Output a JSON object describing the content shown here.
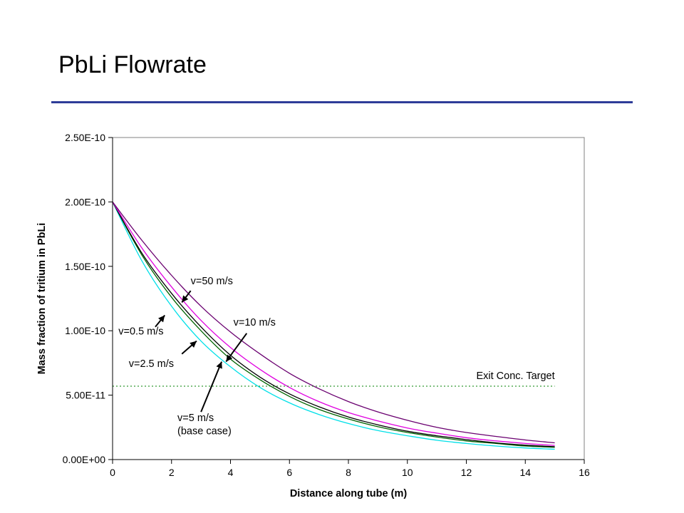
{
  "slide": {
    "title": "PbLi Flowrate"
  },
  "chart_data": {
    "type": "line",
    "xlabel": "Distance along tube (m)",
    "ylabel": "Mass fraction of tritium in PbLi",
    "xlim": [
      0,
      16
    ],
    "ylim": [
      0,
      2.5e-10
    ],
    "xticks": [
      0,
      2,
      4,
      6,
      8,
      10,
      12,
      14,
      16
    ],
    "xtick_labels": [
      "0",
      "2",
      "4",
      "6",
      "8",
      "10",
      "12",
      "14",
      "16"
    ],
    "yticks": [
      0,
      5e-11,
      1e-10,
      1.5e-10,
      2e-10,
      2.5e-10
    ],
    "ytick_labels": [
      "0.00E+00",
      "5.00E-11",
      "1.00E-10",
      "1.50E-10",
      "2.00E-10",
      "2.50E-10"
    ],
    "grid": false,
    "series": [
      {
        "color": "#00e0e8",
        "x": [
          0,
          1,
          2,
          3,
          4,
          5,
          6,
          7,
          8,
          9,
          10,
          11,
          12,
          13,
          14,
          15
        ],
        "y": [
          2e-10,
          1.54e-10,
          1.19e-10,
          9.2e-11,
          7.2e-11,
          5.6e-11,
          4.4e-11,
          3.5e-11,
          2.8e-11,
          2.25e-11,
          1.85e-11,
          1.5e-11,
          1.25e-11,
          1.05e-11,
          9e-12,
          8e-12
        ]
      },
      {
        "color": "#006400",
        "x": [
          0,
          1,
          2,
          3,
          4,
          5,
          6,
          7,
          8,
          9,
          10,
          11,
          12,
          13,
          14,
          15
        ],
        "y": [
          2e-10,
          1.585e-10,
          1.26e-10,
          1e-10,
          7.8e-11,
          6.2e-11,
          4.9e-11,
          3.9e-11,
          3.15e-11,
          2.55e-11,
          2.1e-11,
          1.75e-11,
          1.45e-11,
          1.25e-11,
          1.05e-11,
          9.5e-12
        ]
      },
      {
        "color": "#000000",
        "x": [
          0,
          1,
          2,
          3,
          4,
          5,
          6,
          7,
          8,
          9,
          10,
          11,
          12,
          13,
          14,
          15
        ],
        "y": [
          2e-10,
          1.6e-10,
          1.29e-10,
          1.03e-10,
          8.1e-11,
          6.4e-11,
          5.1e-11,
          4.1e-11,
          3.3e-11,
          2.7e-11,
          2.2e-11,
          1.85e-11,
          1.55e-11,
          1.3e-11,
          1.12e-11,
          1e-11
        ]
      },
      {
        "color": "#e000e0",
        "x": [
          0,
          1,
          2,
          3,
          4,
          5,
          6,
          7,
          8,
          9,
          10,
          11,
          12,
          13,
          14,
          15
        ],
        "y": [
          2e-10,
          1.64e-10,
          1.34e-10,
          1.08e-10,
          8.7e-11,
          7e-11,
          5.6e-11,
          4.5e-11,
          3.65e-11,
          3e-11,
          2.45e-11,
          2.05e-11,
          1.7e-11,
          1.45e-11,
          1.25e-11,
          1.1e-11
        ]
      },
      {
        "color": "#6a0070",
        "x": [
          0,
          1,
          2,
          3,
          4,
          5,
          6,
          7,
          8,
          9,
          10,
          11,
          12,
          13,
          14,
          15
        ],
        "y": [
          2e-10,
          1.7e-10,
          1.43e-10,
          1.19e-10,
          9.9e-11,
          8.2e-11,
          6.7e-11,
          5.5e-11,
          4.5e-11,
          3.7e-11,
          3.05e-11,
          2.5e-11,
          2.1e-11,
          1.8e-11,
          1.52e-11,
          1.3e-11
        ]
      }
    ],
    "reference_line": {
      "label": "Exit Conc. Target",
      "y": 5.7e-11,
      "x": [
        0,
        15
      ],
      "color": "#008000"
    },
    "annotations": [
      {
        "text": "v=50 m/s",
        "x": 2.65,
        "y": 1.36e-10,
        "arrow_from": [
          2.65,
          1.31e-10
        ],
        "arrow_to": [
          2.35,
          1.22e-10
        ]
      },
      {
        "text": "v=0.5 m/s",
        "x": 0.2,
        "y": 9.7e-11,
        "arrow_from": [
          1.45,
          1.03e-10
        ],
        "arrow_to": [
          1.77,
          1.12e-10
        ]
      },
      {
        "text": "v=10 m/s",
        "x": 4.1,
        "y": 1.04e-10,
        "arrow_from": [
          4.55,
          9.8e-11
        ],
        "arrow_to": [
          3.85,
          7.6e-11
        ]
      },
      {
        "text": "v=2.5 m/s",
        "x": 0.55,
        "y": 7.2e-11,
        "arrow_from": [
          2.35,
          8.2e-11
        ],
        "arrow_to": [
          2.85,
          9.2e-11
        ]
      },
      {
        "text": "v=5 m/s",
        "x": 2.2,
        "y": 3e-11,
        "arrow_from": [
          3.0,
          3.7e-11
        ],
        "arrow_to": [
          3.7,
          7.6e-11
        ]
      },
      {
        "text": "(base case)",
        "x": 2.2,
        "y": 1.95e-11
      }
    ],
    "colors": {
      "axis": "#000000",
      "plot_border": "#808080",
      "title_rule": "#2e3d98"
    }
  }
}
